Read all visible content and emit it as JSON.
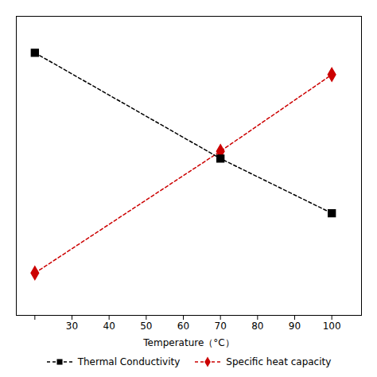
{
  "chart_data": {
    "type": "line",
    "xlabel": "Temperature（°C）",
    "x": [
      20,
      70,
      100
    ],
    "series": [
      {
        "name": "Thermal Conductivity",
        "color": "#000000",
        "values": [
          3.8,
          2.35,
          1.6
        ],
        "marker": "square",
        "line_style": "dashed"
      },
      {
        "name": "Specific heat capacity",
        "color": "#cc0000",
        "values": [
          0.78,
          2.45,
          3.5
        ],
        "marker": "diamond",
        "line_style": "dashed"
      }
    ],
    "xlim": [
      15,
      108
    ],
    "ylim": [
      0.2,
      4.3
    ],
    "xticks": [
      {
        "value": 20,
        "label": null
      },
      30,
      40,
      50,
      60,
      70,
      80,
      90,
      100
    ],
    "yticks": [],
    "tick_labels": "x",
    "grid": false,
    "legend": "lower center"
  }
}
